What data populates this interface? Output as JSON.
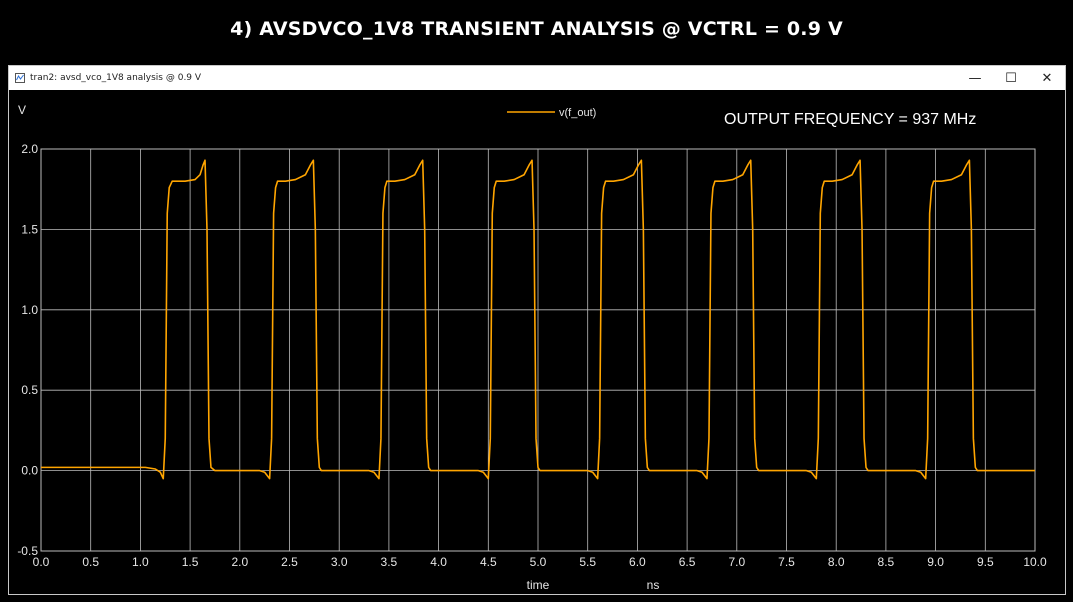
{
  "slide_title": "4) AVSDVCO_1V8 TRANSIENT  ANALYSIS @ VCTRL = 0.9 V",
  "window": {
    "title": "tran2: avsd_vco_1V8 analysis @ 0.9 V",
    "icon": "plot-app-icon",
    "controls": {
      "minimize": "—",
      "maximize": "☐",
      "close": "✕"
    }
  },
  "annotation": "OUTPUT FREQUENCY = 937 MHz",
  "colors": {
    "trace": "#ffa500",
    "grid": "#bdbdbd",
    "background": "#000000"
  },
  "chart_data": {
    "type": "line",
    "ylabel": "V",
    "xlabel": "time",
    "xunit": "ns",
    "xlim": [
      0,
      10
    ],
    "ylim": [
      -0.5,
      2.0
    ],
    "xticks": [
      "0.0",
      "0.5",
      "1.0",
      "1.5",
      "2.0",
      "2.5",
      "3.0",
      "3.5",
      "4.0",
      "4.5",
      "5.0",
      "5.5",
      "6.0",
      "6.5",
      "7.0",
      "7.5",
      "8.0",
      "8.5",
      "9.0",
      "9.5",
      "10.0"
    ],
    "yticks": [
      "2.0",
      "1.5",
      "1.0",
      "0.5",
      "0.0",
      "-0.5"
    ],
    "grid": true,
    "legend_position": "top-center",
    "series": [
      {
        "name": "v(f_out)",
        "color": "#ffa500",
        "x": [
          0,
          0.9,
          1.05,
          1.15,
          1.2,
          1.23,
          1.25,
          1.27,
          1.29,
          1.32,
          1.35,
          1.45,
          1.55,
          1.6,
          1.63,
          1.65,
          1.67,
          1.69,
          1.71,
          1.75,
          2.1,
          2.2,
          2.25,
          2.3,
          2.32,
          2.34,
          2.36,
          2.38,
          2.4,
          2.43,
          2.46,
          2.56,
          2.66,
          2.71,
          2.74,
          2.76,
          2.78,
          2.8,
          2.82,
          2.86,
          3.2,
          3.3,
          3.35,
          3.4,
          3.42,
          3.44,
          3.46,
          3.48,
          3.5,
          3.53,
          3.56,
          3.66,
          3.76,
          3.81,
          3.84,
          3.86,
          3.88,
          3.9,
          3.92,
          3.96,
          4.3,
          4.4,
          4.45,
          4.5,
          4.52,
          4.54,
          4.56,
          4.58,
          4.6,
          4.63,
          4.66,
          4.76,
          4.86,
          4.91,
          4.94,
          4.96,
          4.98,
          5.0,
          5.02,
          5.06,
          5.4,
          5.5,
          5.55,
          5.6,
          5.62,
          5.64,
          5.66,
          5.68,
          5.7,
          5.73,
          5.76,
          5.86,
          5.96,
          6.01,
          6.04,
          6.06,
          6.08,
          6.1,
          6.12,
          6.16,
          6.5,
          6.6,
          6.65,
          6.7,
          6.72,
          6.74,
          6.76,
          6.78,
          6.8,
          6.83,
          6.86,
          6.96,
          7.06,
          7.11,
          7.14,
          7.16,
          7.18,
          7.2,
          7.22,
          7.26,
          7.6,
          7.7,
          7.75,
          7.8,
          7.82,
          7.84,
          7.86,
          7.88,
          7.9,
          7.93,
          7.96,
          8.06,
          8.16,
          8.21,
          8.24,
          8.26,
          8.28,
          8.3,
          8.32,
          8.36,
          8.7,
          8.8,
          8.85,
          8.9,
          8.92,
          8.94,
          8.96,
          8.98,
          9.0,
          9.03,
          9.06,
          9.16,
          9.26,
          9.31,
          9.34,
          9.36,
          9.38,
          9.4,
          9.42,
          9.46,
          10.0
        ],
        "y": [
          0.02,
          0.02,
          0.02,
          0.01,
          -0.01,
          -0.05,
          0.2,
          1.6,
          1.76,
          1.8,
          1.8,
          1.8,
          1.81,
          1.84,
          1.9,
          1.93,
          1.5,
          0.2,
          0.02,
          0.0,
          0.0,
          0.0,
          -0.01,
          -0.05,
          0.2,
          1.6,
          1.76,
          1.8,
          1.8,
          1.8,
          1.8,
          1.81,
          1.84,
          1.9,
          1.93,
          1.5,
          0.2,
          0.02,
          0.0,
          0.0,
          0.0,
          0.0,
          -0.01,
          -0.05,
          0.2,
          1.6,
          1.76,
          1.8,
          1.8,
          1.8,
          1.8,
          1.81,
          1.84,
          1.9,
          1.93,
          1.5,
          0.2,
          0.02,
          0.0,
          0.0,
          0.0,
          0.0,
          -0.01,
          -0.05,
          0.2,
          1.6,
          1.76,
          1.8,
          1.8,
          1.8,
          1.8,
          1.81,
          1.84,
          1.9,
          1.93,
          1.5,
          0.2,
          0.02,
          0.0,
          0.0,
          0.0,
          0.0,
          -0.01,
          -0.05,
          0.2,
          1.6,
          1.76,
          1.8,
          1.8,
          1.8,
          1.8,
          1.81,
          1.84,
          1.9,
          1.93,
          1.5,
          0.2,
          0.02,
          0.0,
          0.0,
          0.0,
          0.0,
          -0.01,
          -0.05,
          0.2,
          1.6,
          1.76,
          1.8,
          1.8,
          1.8,
          1.8,
          1.81,
          1.84,
          1.9,
          1.93,
          1.5,
          0.2,
          0.02,
          0.0,
          0.0,
          0.0,
          0.0,
          -0.01,
          -0.05,
          0.2,
          1.6,
          1.76,
          1.8,
          1.8,
          1.8,
          1.8,
          1.81,
          1.84,
          1.9,
          1.93,
          1.5,
          0.2,
          0.02,
          0.0,
          0.0,
          0.0,
          0.0,
          -0.01,
          -0.05,
          0.2,
          1.6,
          1.76,
          1.8,
          1.8,
          1.8,
          1.8,
          1.81,
          1.84,
          1.9,
          1.93,
          1.5,
          0.2,
          0.02,
          0.0,
          0.0,
          0.0
        ]
      }
    ]
  }
}
